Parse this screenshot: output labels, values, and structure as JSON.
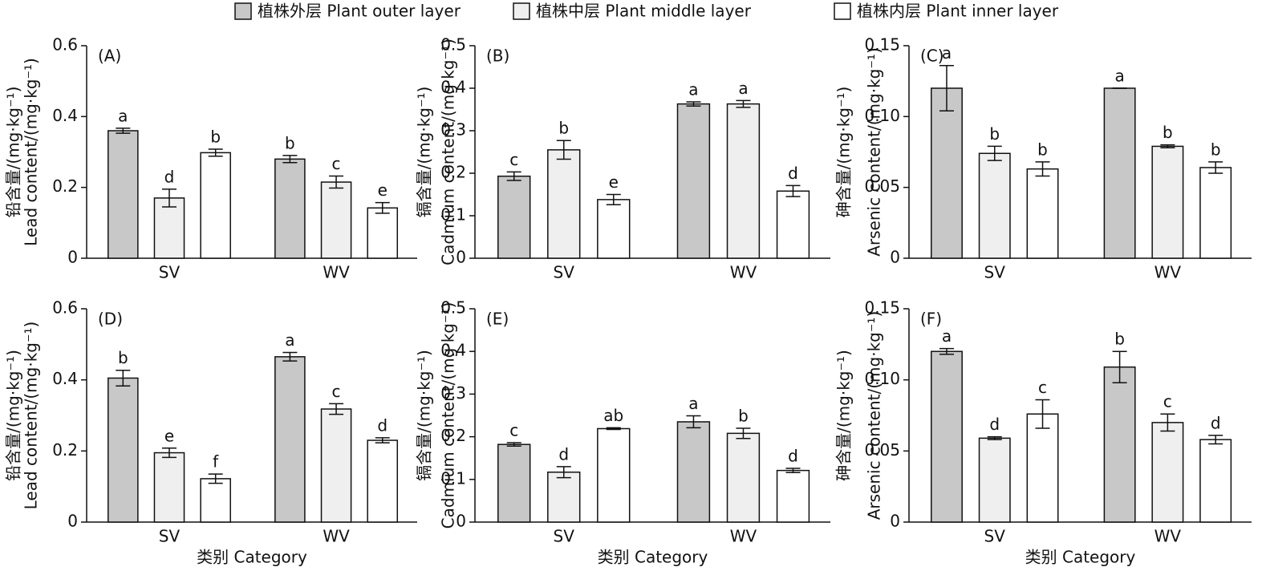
{
  "chart_data": [
    {
      "type": "bar",
      "panel_label": "(A)",
      "ylabel": [
        "铅含量/(mg·kg⁻¹)",
        "Lead content/(mg·kg⁻¹)"
      ],
      "categories": [
        "SV",
        "WV"
      ],
      "ylim": [
        0,
        0.6
      ],
      "yticks": [
        0,
        0.2,
        0.4,
        0.6
      ],
      "series": [
        {
          "name": "植株外层 Plant outer layer",
          "color": "#c8c8c8",
          "values": [
            0.36,
            0.28
          ],
          "errors": [
            0.007,
            0.01
          ],
          "labels": [
            "a",
            "b"
          ]
        },
        {
          "name": "植株中层 Plant middle layer",
          "color": "#efefef",
          "values": [
            0.17,
            0.215
          ],
          "errors": [
            0.025,
            0.017
          ],
          "labels": [
            "d",
            "c"
          ]
        },
        {
          "name": "植株内层 Plant inner layer",
          "color": "#ffffff",
          "values": [
            0.298,
            0.142
          ],
          "errors": [
            0.01,
            0.015
          ],
          "labels": [
            "b",
            "e"
          ]
        }
      ]
    },
    {
      "type": "bar",
      "panel_label": "(B)",
      "ylabel": [
        "镉含量/(mg·kg⁻¹)",
        "Cadmium content/(mg·kg⁻¹)"
      ],
      "categories": [
        "SV",
        "WV"
      ],
      "ylim": [
        0,
        0.5
      ],
      "yticks": [
        0,
        0.1,
        0.2,
        0.3,
        0.4,
        0.5
      ],
      "series": [
        {
          "color": "#c8c8c8",
          "values": [
            0.193,
            0.363
          ],
          "errors": [
            0.01,
            0.005
          ],
          "labels": [
            "c",
            "a"
          ]
        },
        {
          "color": "#efefef",
          "values": [
            0.255,
            0.363
          ],
          "errors": [
            0.022,
            0.008
          ],
          "labels": [
            "b",
            "a"
          ]
        },
        {
          "color": "#ffffff",
          "values": [
            0.138,
            0.158
          ],
          "errors": [
            0.012,
            0.013
          ],
          "labels": [
            "e",
            "d"
          ]
        }
      ]
    },
    {
      "type": "bar",
      "panel_label": "(C)",
      "ylabel": [
        "砷含量/(mg·kg⁻¹)",
        "Arsenic content/(mg·kg⁻¹)"
      ],
      "categories": [
        "SV",
        "WV"
      ],
      "ylim": [
        0,
        0.15
      ],
      "yticks": [
        0,
        0.05,
        {
          "value": 0.1,
          "label": "0.10"
        },
        0.15
      ],
      "series": [
        {
          "color": "#c8c8c8",
          "values": [
            0.12,
            0.12
          ],
          "errors": [
            0.016,
            0
          ],
          "labels": [
            "a",
            "a"
          ]
        },
        {
          "color": "#efefef",
          "values": [
            0.074,
            0.079
          ],
          "errors": [
            0.005,
            0.001
          ],
          "labels": [
            "b",
            "b"
          ]
        },
        {
          "color": "#ffffff",
          "values": [
            0.063,
            0.064
          ],
          "errors": [
            0.005,
            0.004
          ],
          "labels": [
            "b",
            "b"
          ]
        }
      ]
    },
    {
      "type": "bar",
      "panel_label": "(D)",
      "ylabel": [
        "铅含量/(mg·kg⁻¹)",
        "Lead content/(mg·kg⁻¹)"
      ],
      "xlabel": "类别 Category",
      "categories": [
        "SV",
        "WV"
      ],
      "ylim": [
        0,
        0.6
      ],
      "yticks": [
        0,
        0.2,
        0.4,
        0.6
      ],
      "series": [
        {
          "color": "#c8c8c8",
          "values": [
            0.405,
            0.465
          ],
          "errors": [
            0.022,
            0.012
          ],
          "labels": [
            "b",
            "a"
          ]
        },
        {
          "color": "#efefef",
          "values": [
            0.195,
            0.318
          ],
          "errors": [
            0.013,
            0.015
          ],
          "labels": [
            "e",
            "c"
          ]
        },
        {
          "color": "#ffffff",
          "values": [
            0.122,
            0.23
          ],
          "errors": [
            0.013,
            0.007
          ],
          "labels": [
            "f",
            "d"
          ]
        }
      ]
    },
    {
      "type": "bar",
      "panel_label": "(E)",
      "ylabel": [
        "镉含量/(mg·kg⁻¹)",
        "Cadmium content/(mg·kg⁻¹)"
      ],
      "xlabel": "类别 Category",
      "categories": [
        "SV",
        "WV"
      ],
      "ylim": [
        0,
        0.5
      ],
      "yticks": [
        0,
        0.1,
        0.2,
        0.3,
        0.4,
        0.5
      ],
      "series": [
        {
          "color": "#c8c8c8",
          "values": [
            0.182,
            0.235
          ],
          "errors": [
            0.004,
            0.014
          ],
          "labels": [
            "c",
            "a"
          ]
        },
        {
          "color": "#efefef",
          "values": [
            0.117,
            0.208
          ],
          "errors": [
            0.013,
            0.012
          ],
          "labels": [
            "d",
            "b"
          ]
        },
        {
          "color": "#ffffff",
          "values": [
            0.219,
            0.121
          ],
          "errors": [
            0.002,
            0.005
          ],
          "labels": [
            "ab",
            "d"
          ]
        }
      ]
    },
    {
      "type": "bar",
      "panel_label": "(F)",
      "ylabel": [
        "砷含量/(mg·kg⁻¹)",
        "Arsenic content/(mg·kg⁻¹)"
      ],
      "xlabel": "类别 Category",
      "categories": [
        "SV",
        "WV"
      ],
      "ylim": [
        0,
        0.15
      ],
      "yticks": [
        0,
        0.05,
        {
          "value": 0.1,
          "label": "0.10"
        },
        0.15
      ],
      "series": [
        {
          "color": "#c8c8c8",
          "values": [
            0.12,
            0.109
          ],
          "errors": [
            0.002,
            0.011
          ],
          "labels": [
            "a",
            "b"
          ]
        },
        {
          "color": "#efefef",
          "values": [
            0.059,
            0.07
          ],
          "errors": [
            0.001,
            0.006
          ],
          "labels": [
            "d",
            "c"
          ]
        },
        {
          "color": "#ffffff",
          "values": [
            0.076,
            0.058
          ],
          "errors": [
            0.01,
            0.003
          ],
          "labels": [
            "c",
            "d"
          ]
        }
      ]
    }
  ]
}
